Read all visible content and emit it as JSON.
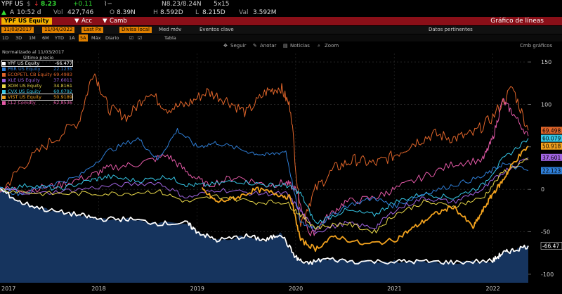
{
  "header": {
    "ticker": "YPF US",
    "currency": "$",
    "price": "8.23",
    "change": "+0.11",
    "spark_icon": "sparkline-icon",
    "bid_ask": "N8.23/8.24N",
    "size": "5x15",
    "arrow": "A",
    "time": "10:52 d",
    "vol_label": "Vol",
    "vol_value": "427,746",
    "o_label": "O",
    "o_value": "8.39N",
    "h_label": "H",
    "h_value": "8.592D",
    "l_label": "L",
    "l_value": "8.215D",
    "val_label": "Val",
    "val_value": "3.592M"
  },
  "redbar": {
    "security": "YPF US Equity",
    "acc_label": "Acc",
    "camb_label": "Camb",
    "title": "Gráfico de líneas"
  },
  "toolbar": {
    "start_date": "11/03/2017",
    "end_date": "11/04/2022",
    "field1": "Last Px",
    "field2": "Divisa local",
    "med_mov": "Med móv",
    "eventos": "Eventos clave",
    "datos": "Datos pertinentes"
  },
  "periods": {
    "items": [
      "1D",
      "3D",
      "1M",
      "6M",
      "YTD",
      "1A",
      "5A",
      "Máx",
      "Diario",
      "☑",
      "☑",
      "Tabla"
    ],
    "active": "5A"
  },
  "chart_toolbar": {
    "seguir": "Seguir",
    "anotar": "Anotar",
    "noticias": "Noticias",
    "zoom": "Zoom",
    "edit": "Cmb gráficos"
  },
  "legend": {
    "title": "Normalizado al 11/03/2017",
    "subtitle": "Último precio",
    "items": [
      {
        "name": "YPF US Equity",
        "value": "-66.477",
        "color": "#ffffff"
      },
      {
        "name": "PBR US Equity",
        "value": "22.1235",
        "color": "#2f7fd8"
      },
      {
        "name": "ECOPETL CB Equity",
        "value": "69.4983",
        "color": "#e0652a"
      },
      {
        "name": "XLE US Equity",
        "value": "37.6011",
        "color": "#a064e0"
      },
      {
        "name": "XOM US Equity",
        "value": "34.8161",
        "color": "#e8d84a"
      },
      {
        "name": "CVX US Equity",
        "value": "60.0792",
        "color": "#35c6e6"
      },
      {
        "name": "VIST US Equity",
        "value": "50.9189",
        "color": "#f2a21e"
      },
      {
        "name": "CL2 Comdty",
        "value": "62.8536",
        "color": "#e55aa8"
      }
    ]
  },
  "chart_data": {
    "type": "line",
    "title": "",
    "xlabel": "",
    "ylabel": "",
    "ylim": [
      -110,
      160
    ],
    "xlim": [
      2017.0,
      2022.36
    ],
    "y_ticks": [
      150,
      100,
      50,
      0,
      -50,
      -100
    ],
    "x_ticks": [
      {
        "label": "2017",
        "x": 2017.0
      },
      {
        "label": "2018",
        "x": 2018.0
      },
      {
        "label": "2019",
        "x": 2019.0
      },
      {
        "label": "2020",
        "x": 2020.0
      },
      {
        "label": "2021",
        "x": 2021.0
      },
      {
        "label": "2022",
        "x": 2022.0
      }
    ],
    "right_labels": [
      {
        "value": "69.498",
        "y": 69.5,
        "color": "#e0652a"
      },
      {
        "value": "60.079",
        "y": 60.1,
        "color": "#35c6e6"
      },
      {
        "value": "50.918",
        "y": 50.9,
        "color": "#f2a21e"
      },
      {
        "value": "37.601",
        "y": 37.6,
        "color": "#a064e0"
      },
      {
        "value": "22.123",
        "y": 22.1,
        "color": "#2f7fd8"
      },
      {
        "value": "-66.47",
        "y": -66.5,
        "color": "#ffffff"
      }
    ],
    "series": [
      {
        "name": "ECOPETL CB Equity",
        "color": "#e0652a",
        "x": [
          2017.0,
          2017.2,
          2017.5,
          2017.8,
          2017.95,
          2018.1,
          2018.3,
          2018.5,
          2018.7,
          2018.9,
          2019.1,
          2019.3,
          2019.5,
          2019.7,
          2019.85,
          2019.95,
          2020.05,
          2020.2,
          2020.4,
          2020.6,
          2020.8,
          2021.0,
          2021.2,
          2021.4,
          2021.6,
          2021.8,
          2022.0,
          2022.2,
          2022.36
        ],
        "y": [
          -5,
          25,
          55,
          80,
          140,
          95,
          85,
          115,
          95,
          100,
          115,
          105,
          90,
          115,
          120,
          95,
          -40,
          0,
          25,
          35,
          30,
          40,
          55,
          65,
          60,
          65,
          85,
          120,
          69.5
        ]
      },
      {
        "name": "CL2 Comdty",
        "color": "#e55aa8",
        "x": [
          2017.0,
          2017.3,
          2017.6,
          2017.9,
          2018.1,
          2018.4,
          2018.7,
          2018.9,
          2019.1,
          2019.4,
          2019.7,
          2019.9,
          2020.0,
          2020.15,
          2020.3,
          2020.5,
          2020.8,
          2021.0,
          2021.3,
          2021.6,
          2021.9,
          2022.0,
          2022.1,
          2022.2,
          2022.36
        ],
        "y": [
          0,
          0,
          5,
          15,
          25,
          30,
          40,
          20,
          5,
          15,
          5,
          8,
          0,
          -55,
          -35,
          -15,
          -10,
          0,
          15,
          30,
          35,
          60,
          105,
          90,
          62.9
        ]
      },
      {
        "name": "CVX US Equity",
        "color": "#35c6e6",
        "x": [
          2017.0,
          2017.3,
          2017.6,
          2017.9,
          2018.1,
          2018.4,
          2018.7,
          2018.9,
          2019.1,
          2019.4,
          2019.7,
          2019.9,
          2020.05,
          2020.2,
          2020.5,
          2020.8,
          2021.0,
          2021.3,
          2021.6,
          2021.9,
          2022.1,
          2022.36
        ],
        "y": [
          0,
          5,
          0,
          10,
          15,
          10,
          15,
          5,
          5,
          10,
          5,
          5,
          -5,
          -40,
          -25,
          -30,
          -15,
          -5,
          -10,
          5,
          35,
          60.1
        ]
      },
      {
        "name": "PBR US Equity",
        "color": "#2f7fd8",
        "x": [
          2017.0,
          2017.2,
          2017.5,
          2017.8,
          2018.1,
          2018.4,
          2018.6,
          2018.8,
          2019.0,
          2019.2,
          2019.5,
          2019.7,
          2019.9,
          2020.05,
          2020.2,
          2020.5,
          2020.8,
          2021.0,
          2021.3,
          2021.6,
          2021.9,
          2022.1,
          2022.36
        ],
        "y": [
          0,
          -5,
          5,
          15,
          45,
          60,
          35,
          70,
          50,
          55,
          45,
          40,
          45,
          -40,
          -45,
          -20,
          -10,
          -20,
          -5,
          5,
          15,
          30,
          22.1
        ]
      },
      {
        "name": "XLE US Equity",
        "color": "#a064e0",
        "x": [
          2017.0,
          2017.4,
          2017.8,
          2018.2,
          2018.6,
          2018.9,
          2019.2,
          2019.6,
          2019.9,
          2020.05,
          2020.2,
          2020.5,
          2020.8,
          2021.0,
          2021.3,
          2021.6,
          2021.9,
          2022.1,
          2022.36
        ],
        "y": [
          0,
          -5,
          0,
          5,
          8,
          -10,
          0,
          -5,
          -5,
          -25,
          -50,
          -40,
          -45,
          -25,
          -10,
          -15,
          0,
          20,
          37.6
        ]
      },
      {
        "name": "XOM US Equity",
        "color": "#e8d84a",
        "x": [
          2017.0,
          2017.4,
          2017.8,
          2018.2,
          2018.6,
          2018.9,
          2019.2,
          2019.6,
          2019.9,
          2020.05,
          2020.2,
          2020.5,
          2020.8,
          2021.0,
          2021.3,
          2021.6,
          2021.9,
          2022.1,
          2022.36
        ],
        "y": [
          0,
          -5,
          -5,
          -5,
          -2,
          -15,
          -8,
          -15,
          -15,
          -30,
          -45,
          -40,
          -50,
          -30,
          -15,
          -20,
          -10,
          20,
          34.8
        ]
      },
      {
        "name": "VIST US Equity",
        "color": "#f2a21e",
        "x": [
          2019.05,
          2019.2,
          2019.4,
          2019.6,
          2019.8,
          2019.95,
          2020.05,
          2020.2,
          2020.4,
          2020.7,
          2021.0,
          2021.2,
          2021.4,
          2021.6,
          2021.8,
          2021.9,
          2022.0,
          2022.1,
          2022.2,
          2022.36
        ],
        "y": [
          0,
          -15,
          -10,
          0,
          -5,
          -10,
          -60,
          -70,
          -55,
          -65,
          -60,
          -45,
          -30,
          -20,
          -45,
          -25,
          -5,
          10,
          30,
          50.9
        ]
      },
      {
        "name": "YPF US Equity",
        "color": "#ffffff",
        "fill": "#16345e",
        "x": [
          2017.0,
          2017.2,
          2017.5,
          2017.8,
          2018.0,
          2018.3,
          2018.6,
          2018.9,
          2019.0,
          2019.2,
          2019.5,
          2019.7,
          2019.85,
          2020.0,
          2020.1,
          2020.3,
          2020.6,
          2021.0,
          2021.3,
          2021.6,
          2022.0,
          2022.1,
          2022.2,
          2022.36
        ],
        "y": [
          0,
          -15,
          -25,
          -30,
          -35,
          -35,
          -40,
          -40,
          -50,
          -60,
          -55,
          -60,
          -52,
          -80,
          -88,
          -82,
          -85,
          -85,
          -85,
          -86,
          -84,
          -75,
          -72,
          -66.5
        ]
      }
    ]
  }
}
